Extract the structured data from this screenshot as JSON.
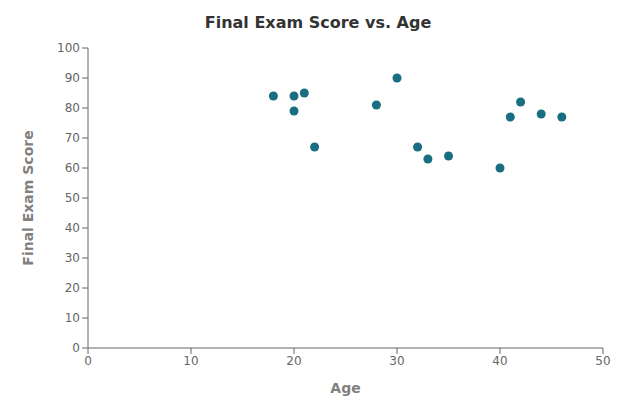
{
  "chart_data": {
    "type": "scatter",
    "title": "Final Exam Score vs. Age",
    "xlabel": "Age",
    "ylabel": "Final Exam Score",
    "x": [
      18,
      20,
      21,
      20,
      22,
      28,
      30,
      32,
      33,
      35,
      40,
      41,
      42,
      44,
      46
    ],
    "y": [
      84,
      84,
      85,
      79,
      67,
      81,
      90,
      67,
      63,
      64,
      60,
      77,
      82,
      78,
      77
    ],
    "xlim": [
      0,
      50
    ],
    "ylim": [
      0,
      100
    ],
    "xticks": [
      0,
      10,
      20,
      30,
      40,
      50
    ],
    "yticks": [
      0,
      10,
      20,
      30,
      40,
      50,
      60,
      70,
      80,
      90,
      100
    ],
    "color": "#1a6e82",
    "grid": false
  }
}
